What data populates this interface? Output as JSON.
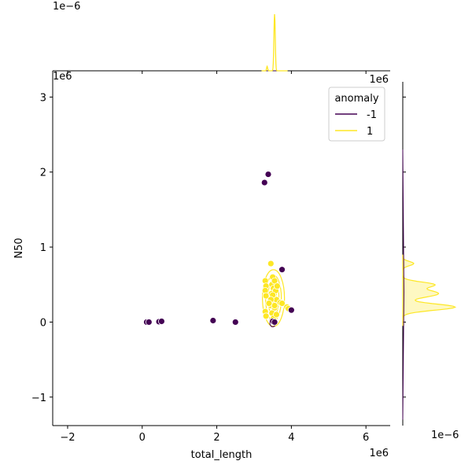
{
  "chart_data": {
    "type": "scatter",
    "kind": "jointplot with kde",
    "xlabel": "total_length",
    "ylabel": "N50",
    "x_offset_text": "1e6",
    "y_offset_text": "1e6",
    "xlim": [
      -2.4,
      6.65
    ],
    "ylim": [
      -1.38,
      3.35
    ],
    "x_ticks": [
      -2,
      0,
      2,
      4,
      6
    ],
    "y_ticks": [
      -1,
      0,
      1,
      2,
      3
    ],
    "x_tick_labels": [
      "−2",
      "0",
      "2",
      "4",
      "6"
    ],
    "y_tick_labels": [
      "−1",
      "0",
      "1",
      "2",
      "3"
    ],
    "marginal_offset_text": "1e−6",
    "legend": {
      "title": "anomaly",
      "placement": "upper-right",
      "entries": [
        "-1",
        "1"
      ]
    },
    "colors": {
      "-1": "#440154",
      "1": "#fde725"
    },
    "series": [
      {
        "name": "-1",
        "points": [
          [
            0.12,
            0.0
          ],
          [
            0.18,
            0.0
          ],
          [
            0.45,
            0.005
          ],
          [
            0.52,
            0.01
          ],
          [
            1.9,
            0.02
          ],
          [
            2.5,
            0.0
          ],
          [
            3.28,
            1.86
          ],
          [
            3.38,
            1.97
          ],
          [
            3.75,
            0.7
          ],
          [
            3.5,
            0.01
          ],
          [
            3.55,
            0.0
          ],
          [
            4.0,
            0.16
          ]
        ]
      },
      {
        "name": "1",
        "points": [
          [
            3.3,
            0.55
          ],
          [
            3.32,
            0.48
          ],
          [
            3.3,
            0.42
          ],
          [
            3.32,
            0.35
          ],
          [
            3.3,
            0.14
          ],
          [
            3.32,
            0.08
          ],
          [
            3.45,
            0.78
          ],
          [
            3.5,
            0.6
          ],
          [
            3.48,
            0.5
          ],
          [
            3.52,
            0.45
          ],
          [
            3.47,
            0.38
          ],
          [
            3.53,
            0.33
          ],
          [
            3.5,
            0.28
          ],
          [
            3.45,
            0.22
          ],
          [
            3.55,
            0.19
          ],
          [
            3.48,
            0.12
          ],
          [
            3.52,
            0.05
          ],
          [
            3.58,
            0.42
          ],
          [
            3.6,
            0.3
          ],
          [
            3.55,
            0.22
          ],
          [
            3.6,
            0.1
          ],
          [
            3.7,
            0.26
          ],
          [
            3.75,
            0.25
          ],
          [
            3.88,
            0.2
          ],
          [
            3.92,
            0.18
          ],
          [
            3.5,
            0.36
          ],
          [
            3.45,
            0.3
          ],
          [
            3.55,
            0.55
          ],
          [
            3.62,
            0.48
          ],
          [
            3.4,
            0.25
          ]
        ]
      }
    ]
  }
}
